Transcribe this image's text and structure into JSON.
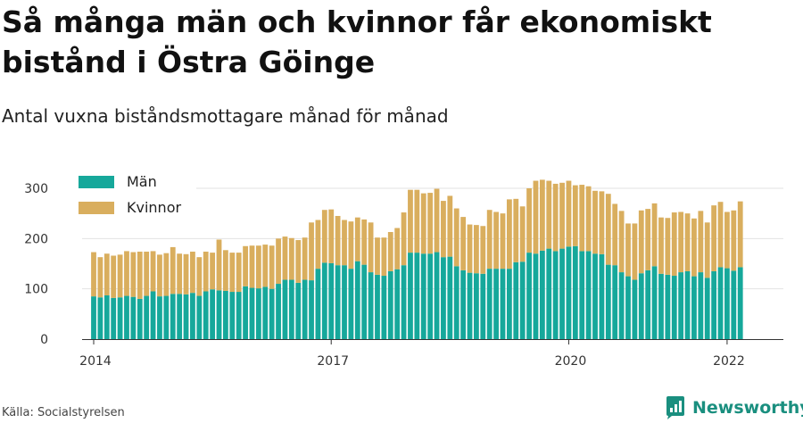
{
  "title": "Så många män och kvinnor får ekonomiskt bistånd i Östra Göinge",
  "subtitle": "Antal vuxna biståndsmottagare månad för månad",
  "source": "Källa: Socialstyrelsen",
  "brand": {
    "name": "Newsworthy",
    "logo_icon": "newsworthy-logo-icon"
  },
  "colors": {
    "men": "#16a89b",
    "women": "#d9ae5e",
    "grid": "#e2e2e2",
    "axis": "#333333"
  },
  "chart_data": {
    "type": "bar",
    "stacked": true,
    "ylim": [
      0,
      320
    ],
    "yticks": [
      0,
      100,
      200,
      300
    ],
    "xtick_labels": [
      {
        "label": "2014",
        "index": 0
      },
      {
        "label": "2017",
        "index": 36
      },
      {
        "label": "2020",
        "index": 72
      },
      {
        "label": "2022",
        "index": 96
      }
    ],
    "legend": {
      "position": "top-left",
      "entries": [
        "Män",
        "Kvinnor"
      ]
    },
    "series": [
      {
        "name": "Män",
        "color": "#16a89b",
        "values": [
          85,
          83,
          87,
          82,
          83,
          86,
          84,
          80,
          86,
          95,
          85,
          86,
          90,
          90,
          89,
          92,
          86,
          95,
          99,
          97,
          96,
          94,
          94,
          105,
          102,
          101,
          104,
          100,
          110,
          118,
          118,
          112,
          118,
          117,
          140,
          152,
          151,
          147,
          147,
          140,
          155,
          148,
          133,
          128,
          126,
          135,
          139,
          147,
          172,
          172,
          170,
          170,
          173,
          163,
          164,
          145,
          137,
          132,
          131,
          130,
          140,
          140,
          140,
          140,
          153,
          154,
          172,
          170,
          176,
          180,
          175,
          180,
          184,
          185,
          175,
          175,
          170,
          169,
          148,
          147,
          133,
          125,
          118,
          131,
          137,
          145,
          130,
          128,
          126,
          133,
          135,
          125,
          133,
          122,
          135,
          143,
          141,
          136,
          143
        ]
      },
      {
        "name": "Kvinnor",
        "color": "#d9ae5e",
        "values": [
          88,
          80,
          83,
          84,
          85,
          89,
          89,
          94,
          88,
          80,
          83,
          85,
          93,
          80,
          80,
          82,
          77,
          79,
          73,
          101,
          81,
          78,
          78,
          80,
          84,
          85,
          84,
          86,
          90,
          86,
          83,
          85,
          84,
          115,
          97,
          105,
          107,
          98,
          90,
          94,
          87,
          90,
          99,
          74,
          76,
          78,
          82,
          105,
          125,
          125,
          120,
          121,
          126,
          112,
          121,
          115,
          106,
          96,
          96,
          95,
          117,
          113,
          110,
          138,
          126,
          110,
          128,
          145,
          141,
          135,
          134,
          131,
          131,
          121,
          132,
          129,
          125,
          125,
          141,
          122,
          122,
          105,
          112,
          125,
          122,
          125,
          112,
          113,
          126,
          120,
          115,
          115,
          122,
          110,
          131,
          130,
          112,
          120,
          131
        ]
      }
    ]
  }
}
